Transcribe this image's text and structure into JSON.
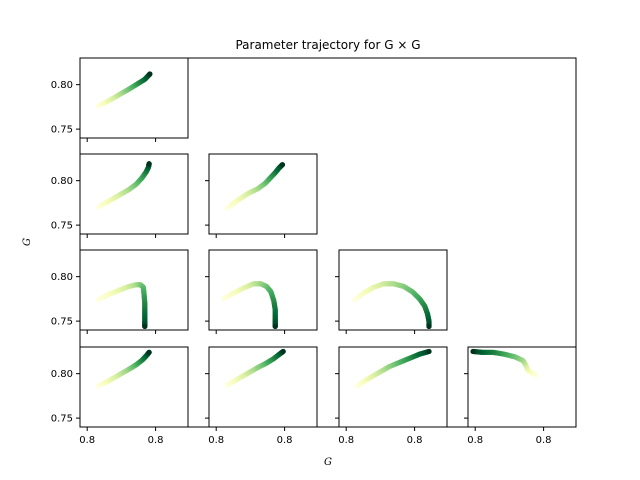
{
  "chart_data": {
    "type": "scatter",
    "title": "Parameter trajectory for G × G",
    "xlabel": "G",
    "ylabel": "G",
    "y_tick_labels": [
      "0.75",
      "0.80"
    ],
    "y_ticks": [
      0.75,
      0.8
    ],
    "ylim": [
      0.74,
      0.83
    ],
    "x_tick_labels": [
      "0.8",
      "0.8"
    ],
    "xlim": [
      0.75,
      0.9
    ],
    "x_tick_values": [
      0.76,
      0.855
    ],
    "colormap": [
      "#ffffe5",
      "#f7fcb9",
      "#d9f0a3",
      "#addd8e",
      "#78c679",
      "#41ab5d",
      "#238443",
      "#006837",
      "#004529"
    ],
    "grid": false,
    "panels": [
      {
        "row": 0,
        "col": 0,
        "points": [
          [
            0.775,
            0.776
          ],
          [
            0.79,
            0.782
          ],
          [
            0.805,
            0.789
          ],
          [
            0.818,
            0.795
          ],
          [
            0.83,
            0.801
          ],
          [
            0.84,
            0.806
          ],
          [
            0.847,
            0.812
          ]
        ]
      },
      {
        "row": 1,
        "col": 0,
        "points": [
          [
            0.775,
            0.77
          ],
          [
            0.79,
            0.777
          ],
          [
            0.805,
            0.784
          ],
          [
            0.818,
            0.79
          ],
          [
            0.828,
            0.796
          ],
          [
            0.836,
            0.803
          ],
          [
            0.842,
            0.81
          ],
          [
            0.845,
            0.815
          ],
          [
            0.846,
            0.819
          ]
        ]
      },
      {
        "row": 1,
        "col": 1,
        "points": [
          [
            0.775,
            0.769
          ],
          [
            0.79,
            0.778
          ],
          [
            0.805,
            0.786
          ],
          [
            0.818,
            0.791
          ],
          [
            0.828,
            0.797
          ],
          [
            0.835,
            0.803
          ],
          [
            0.842,
            0.809
          ],
          [
            0.847,
            0.814
          ],
          [
            0.852,
            0.818
          ]
        ]
      },
      {
        "row": 2,
        "col": 0,
        "points": [
          [
            0.775,
            0.774
          ],
          [
            0.79,
            0.78
          ],
          [
            0.805,
            0.785
          ],
          [
            0.818,
            0.789
          ],
          [
            0.828,
            0.791
          ],
          [
            0.834,
            0.791
          ],
          [
            0.838,
            0.788
          ],
          [
            0.839,
            0.78
          ],
          [
            0.84,
            0.77
          ],
          [
            0.84,
            0.76
          ],
          [
            0.84,
            0.75
          ],
          [
            0.84,
            0.744
          ]
        ]
      },
      {
        "row": 2,
        "col": 1,
        "points": [
          [
            0.77,
            0.775
          ],
          [
            0.785,
            0.782
          ],
          [
            0.8,
            0.788
          ],
          [
            0.812,
            0.792
          ],
          [
            0.822,
            0.792
          ],
          [
            0.83,
            0.789
          ],
          [
            0.836,
            0.783
          ],
          [
            0.84,
            0.773
          ],
          [
            0.842,
            0.763
          ],
          [
            0.842,
            0.752
          ],
          [
            0.842,
            0.744
          ]
        ]
      },
      {
        "row": 2,
        "col": 2,
        "points": [
          [
            0.772,
            0.774
          ],
          [
            0.785,
            0.782
          ],
          [
            0.798,
            0.788
          ],
          [
            0.812,
            0.792
          ],
          [
            0.826,
            0.792
          ],
          [
            0.84,
            0.789
          ],
          [
            0.852,
            0.783
          ],
          [
            0.862,
            0.775
          ],
          [
            0.869,
            0.767
          ],
          [
            0.873,
            0.758
          ],
          [
            0.875,
            0.75
          ],
          [
            0.875,
            0.744
          ]
        ]
      },
      {
        "row": 3,
        "col": 0,
        "points": [
          [
            0.775,
            0.786
          ],
          [
            0.79,
            0.792
          ],
          [
            0.805,
            0.799
          ],
          [
            0.818,
            0.805
          ],
          [
            0.828,
            0.81
          ],
          [
            0.836,
            0.815
          ],
          [
            0.842,
            0.82
          ],
          [
            0.846,
            0.824
          ]
        ]
      },
      {
        "row": 3,
        "col": 1,
        "points": [
          [
            0.775,
            0.787
          ],
          [
            0.79,
            0.794
          ],
          [
            0.805,
            0.801
          ],
          [
            0.818,
            0.807
          ],
          [
            0.83,
            0.812
          ],
          [
            0.84,
            0.817
          ],
          [
            0.848,
            0.822
          ],
          [
            0.853,
            0.825
          ]
        ]
      },
      {
        "row": 3,
        "col": 2,
        "points": [
          [
            0.775,
            0.786
          ],
          [
            0.79,
            0.794
          ],
          [
            0.805,
            0.801
          ],
          [
            0.82,
            0.808
          ],
          [
            0.835,
            0.813
          ],
          [
            0.85,
            0.818
          ],
          [
            0.862,
            0.822
          ],
          [
            0.875,
            0.825
          ]
        ]
      },
      {
        "row": 3,
        "col": 3,
        "points": [
          [
            0.845,
            0.798
          ],
          [
            0.833,
            0.804
          ],
          [
            0.83,
            0.81
          ],
          [
            0.826,
            0.815
          ],
          [
            0.815,
            0.819
          ],
          [
            0.8,
            0.822
          ],
          [
            0.785,
            0.824
          ],
          [
            0.77,
            0.824
          ],
          [
            0.757,
            0.825
          ]
        ]
      }
    ]
  }
}
